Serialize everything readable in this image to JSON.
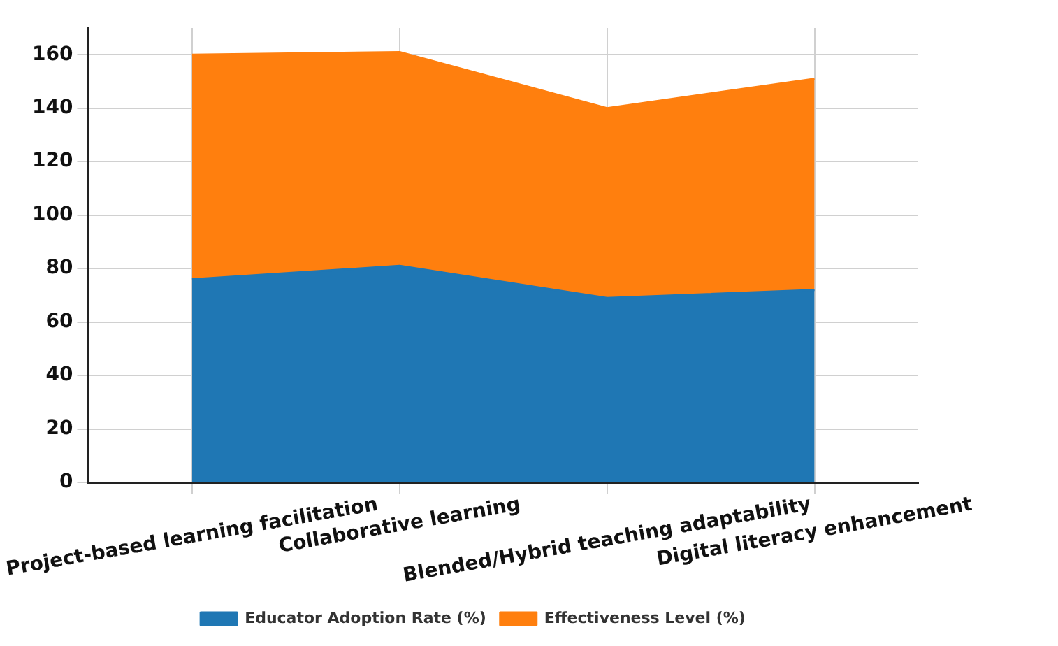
{
  "chart_data": {
    "type": "area",
    "stacked": true,
    "categories": [
      "Project-based learning facilitation",
      "Collaborative learning",
      "Blended/Hybrid teaching adaptability",
      "Digital literacy enhancement"
    ],
    "series": [
      {
        "name": "Educator Adoption Rate (%)",
        "color": "#1f77b4",
        "values": [
          76,
          81,
          69,
          72
        ]
      },
      {
        "name": "Effectiveness Level (%)",
        "color": "#ff7f0e",
        "values": [
          84,
          80,
          71,
          79
        ]
      }
    ],
    "ylim": [
      0,
      170
    ],
    "yticks": [
      0,
      20,
      40,
      60,
      80,
      100,
      120,
      140,
      160
    ],
    "grid": true,
    "legend": "bottom"
  }
}
